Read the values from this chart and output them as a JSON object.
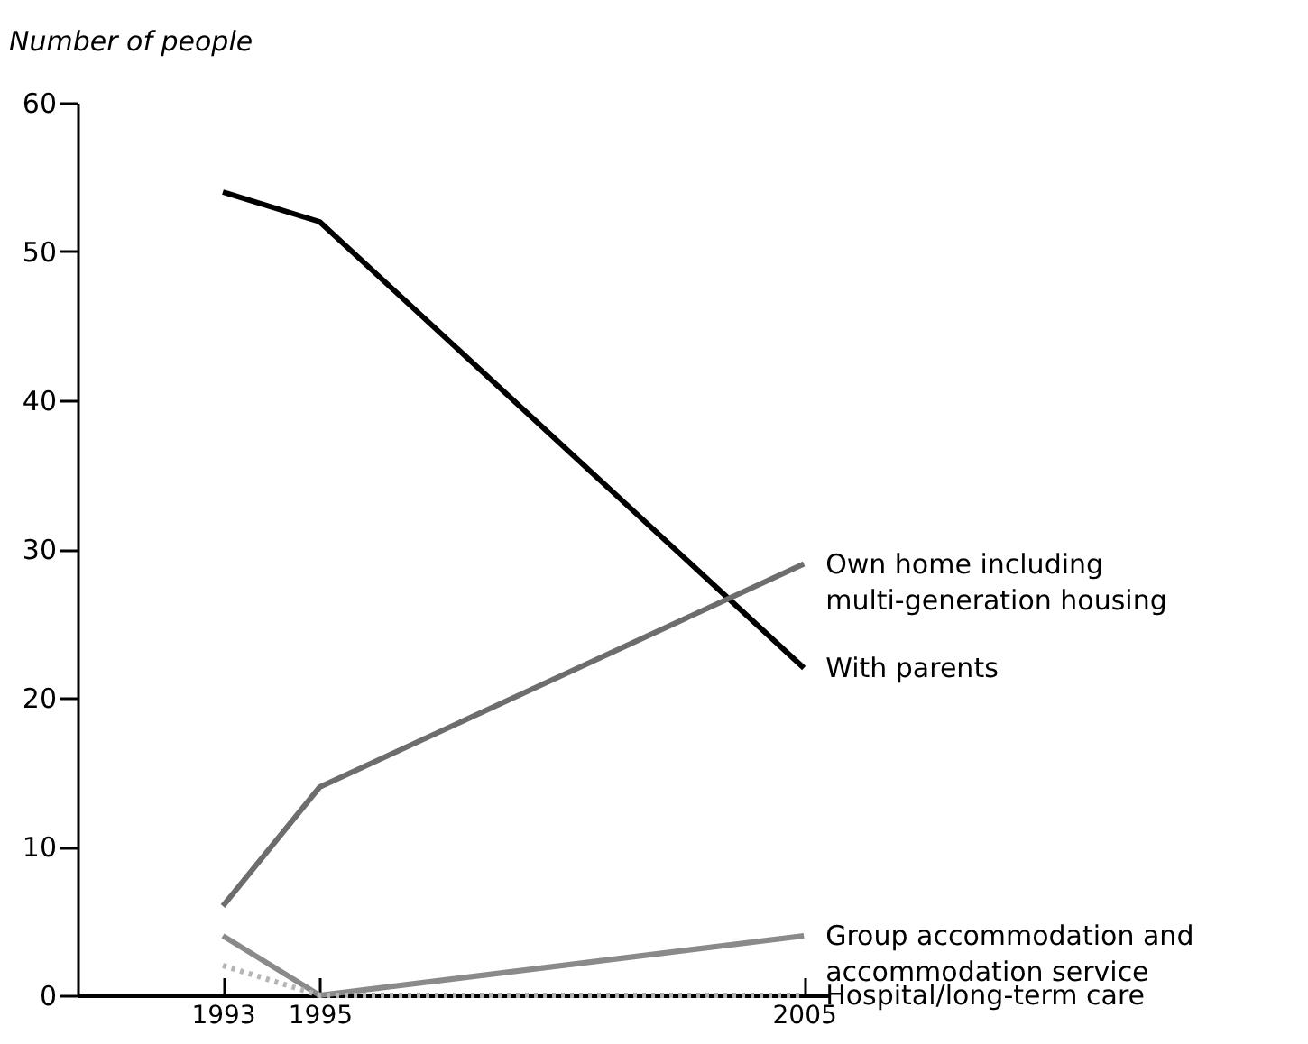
{
  "chart_data": {
    "type": "line",
    "ylabel": "Number of people",
    "x": [
      1993,
      1995,
      2005
    ],
    "xlim": [
      1990,
      2005.5
    ],
    "xticks": [
      1993,
      1995,
      2005
    ],
    "ylim": [
      0,
      60
    ],
    "yticks": [
      0,
      10,
      20,
      30,
      40,
      50,
      60
    ],
    "grid": false,
    "legend": false,
    "marker": "none",
    "series": [
      {
        "name": "With parents",
        "color": "#000000",
        "values": [
          54,
          52,
          22
        ]
      },
      {
        "name": "Own home including multi-generation housing",
        "color": "#6d6d6d",
        "values": [
          6,
          14,
          29
        ]
      },
      {
        "name": "Group accommodation and accommodation service",
        "color": "#8a8a8a",
        "values": [
          4,
          0,
          4
        ]
      },
      {
        "name": "Hospital/long-term care",
        "color": "#b5b5b5",
        "values": [
          2,
          0,
          0
        ],
        "line_style": "dotted"
      }
    ]
  }
}
